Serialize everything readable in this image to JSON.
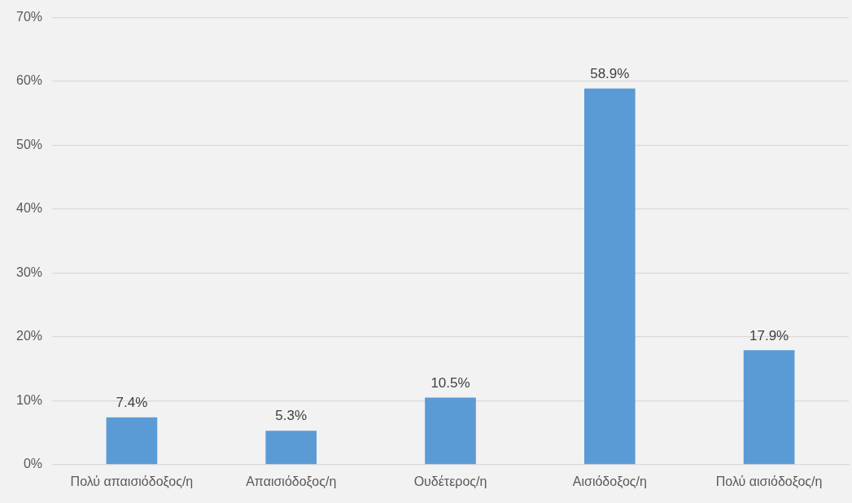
{
  "chart_data": {
    "type": "bar",
    "categories": [
      "Πολύ απαισιόδοξος/η",
      "Απαισιόδοξος/η",
      "Ουδέτερος/η",
      "Αισιόδοξος/η",
      "Πολύ αισιόδοξος/η"
    ],
    "values": [
      7.4,
      5.3,
      10.5,
      58.9,
      17.9
    ],
    "value_labels": [
      "7.4%",
      "5.3%",
      "10.5%",
      "58.9%",
      "17.9%"
    ],
    "color": "#5b9bd5",
    "ylim": [
      0,
      70
    ],
    "yticks": [
      {
        "value": 0,
        "label": "0%"
      },
      {
        "value": 10,
        "label": "10%"
      },
      {
        "value": 20,
        "label": "20%"
      },
      {
        "value": 30,
        "label": "30%"
      },
      {
        "value": 40,
        "label": "40%"
      },
      {
        "value": 50,
        "label": "50%"
      },
      {
        "value": 60,
        "label": "60%"
      },
      {
        "value": 70,
        "label": "70%"
      }
    ],
    "grid": "y"
  }
}
